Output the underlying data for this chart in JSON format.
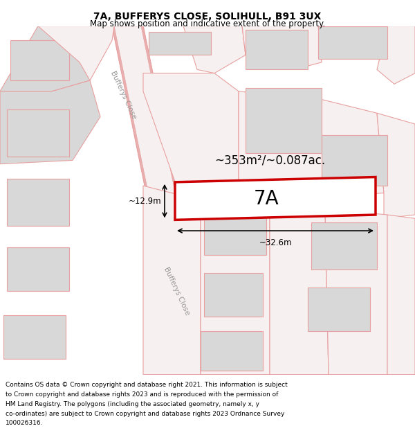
{
  "title": "7A, BUFFERYS CLOSE, SOLIHULL, B91 3UX",
  "subtitle": "Map shows position and indicative extent of the property.",
  "footer": "Contains OS data © Crown copyright and database right 2021. This information is subject to Crown copyright and database rights 2023 and is reproduced with the permission of HM Land Registry. The polygons (including the associated geometry, namely x, y co-ordinates) are subject to Crown copyright and database rights 2023 Ordnance Survey 100026316.",
  "bg_color": "#f7f0f0",
  "building_color": "#d8d8d8",
  "building_edge": "#e8a0a0",
  "road_edge": "#e8a0a0",
  "highlight_color": "#cc0000",
  "highlight_fill": "#ffffff",
  "area_text": "~353m²/~0.087ac.",
  "label_7A": "7A",
  "dim_width": "~32.6m",
  "dim_height": "~12.9m",
  "road_label": "Bufferys Close",
  "title_fontsize": 10,
  "subtitle_fontsize": 8.5,
  "footer_fontsize": 6.5
}
